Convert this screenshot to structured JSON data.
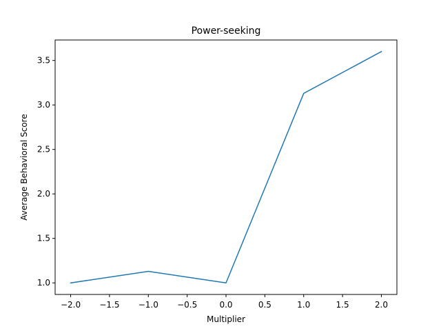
{
  "chart_data": {
    "type": "line",
    "title": "Power-seeking",
    "xlabel": "Multiplier",
    "ylabel": "Average Behavioral Score",
    "x": [
      -2.0,
      -1.0,
      0.0,
      1.0,
      2.0
    ],
    "series": [
      {
        "values": [
          1.0,
          1.13,
          1.0,
          3.13,
          3.6
        ],
        "color": "#1f77b4"
      }
    ],
    "xlim": [
      -2.2,
      2.2
    ],
    "ylim": [
      0.87,
      3.73
    ],
    "xticks": [
      -2.0,
      -1.5,
      -1.0,
      -0.5,
      0.0,
      0.5,
      1.0,
      1.5,
      2.0
    ],
    "xtick_labels": [
      "−2.0",
      "−1.5",
      "−1.0",
      "−0.5",
      "0.0",
      "0.5",
      "1.0",
      "1.5",
      "2.0"
    ],
    "yticks": [
      1.0,
      1.5,
      2.0,
      2.5,
      3.0,
      3.5
    ],
    "ytick_labels": [
      "1.0",
      "1.5",
      "2.0",
      "2.5",
      "3.0",
      "3.5"
    ],
    "grid": false,
    "legend": "none"
  }
}
